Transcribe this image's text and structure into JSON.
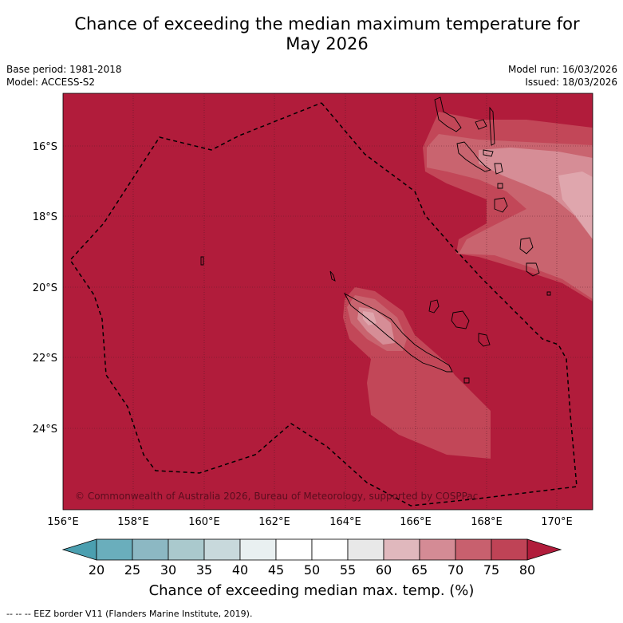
{
  "title_line1": "Chance of exceeding the median maximum temperature for",
  "title_line2": "May 2026",
  "meta": {
    "base_period": "Base period: 1981-2018",
    "model": "Model: ACCESS-S2",
    "model_run": "Model run: 16/03/2026",
    "issued": "Issued: 18/03/2026"
  },
  "map": {
    "lon_labels": [
      "156°E",
      "158°E",
      "160°E",
      "162°E",
      "164°E",
      "166°E",
      "168°E",
      "170°E"
    ],
    "lat_labels": [
      "16°S",
      "18°S",
      "20°S",
      "22°S",
      "24°S"
    ],
    "copyright": "© Commonwealth of Australia 2026, Bureau of Meteorology, supported by COSPPac"
  },
  "colorbar": {
    "ticks": [
      "20",
      "25",
      "30",
      "35",
      "40",
      "45",
      "50",
      "55",
      "60",
      "65",
      "70",
      "75",
      "80"
    ],
    "colors": [
      "#6aaebc",
      "#8cb8c3",
      "#aac9cd",
      "#c8d9dc",
      "#e9f0f1",
      "#ffffff",
      "#ffffff",
      "#e8e8e8",
      "#e0b8bd",
      "#d48b95",
      "#c8606e",
      "#bf4356"
    ],
    "under_color": "#4b9fb0",
    "over_color": "#b11c3b",
    "label": "Chance of exceeding median max. temp. (%)"
  },
  "footer": "--  --  -- EEZ border V11 (Flanders Marine Institute, 2019)."
}
